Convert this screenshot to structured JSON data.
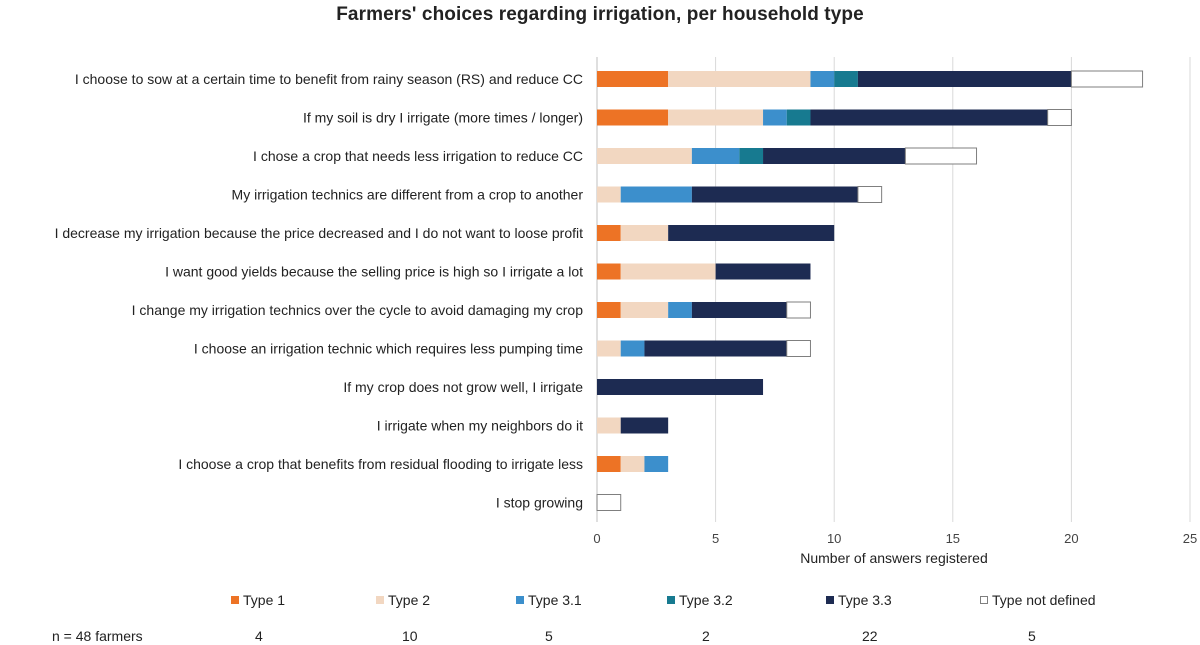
{
  "chart_data": {
    "type": "bar",
    "orientation": "horizontal",
    "stacked": true,
    "title": "Farmers' choices regarding irrigation, per household type",
    "xlabel": "Number of answers registered",
    "ylabel": "",
    "xlim": [
      0,
      25
    ],
    "xticks": [
      0,
      5,
      10,
      15,
      20,
      25
    ],
    "grid": "vertical",
    "legend_position": "bottom",
    "categories": [
      "I choose to sow at a certain time to benefit from rainy season (RS) and reduce CC",
      "If my soil is dry I irrigate (more times / longer)",
      "I chose a crop that needs less irrigation to reduce CC",
      "My irrigation technics are different from a crop to another",
      "I decrease my irrigation because the price decreased and I do not want to loose profit",
      "I want good yields because the selling price is high so I irrigate a lot",
      "I change my irrigation technics over the cycle to avoid damaging my crop",
      "I choose an irrigation technic which requires less pumping time",
      "If my crop does not grow well, I irrigate",
      "I irrigate when my neighbors do it",
      "I choose a crop that benefits from residual flooding to irrigate less",
      "I stop growing"
    ],
    "series": [
      {
        "name": "Type 1",
        "color": "#ED7325",
        "values": [
          3,
          3,
          0,
          0,
          1,
          1,
          1,
          0,
          0,
          0,
          1,
          0
        ]
      },
      {
        "name": "Type 2",
        "color": "#F2D7C1",
        "values": [
          6,
          4,
          4,
          1,
          2,
          4,
          2,
          1,
          0,
          1,
          1,
          0
        ]
      },
      {
        "name": "Type 3.1",
        "color": "#3C8FCC",
        "values": [
          1,
          1,
          2,
          3,
          0,
          0,
          1,
          1,
          0,
          0,
          1,
          0
        ]
      },
      {
        "name": "Type 3.2",
        "color": "#177A90",
        "values": [
          1,
          1,
          1,
          0,
          0,
          0,
          0,
          0,
          0,
          0,
          0,
          0
        ]
      },
      {
        "name": "Type 3.3",
        "color": "#1D2B52",
        "values": [
          9,
          10,
          6,
          7,
          7,
          4,
          4,
          6,
          7,
          2,
          0,
          0
        ]
      },
      {
        "name": "Type not defined",
        "color": "#FFFFFF",
        "values": [
          3,
          1,
          3,
          1,
          0,
          0,
          1,
          1,
          0,
          0,
          0,
          1
        ]
      }
    ],
    "sample_label": "n = 48 farmers",
    "sample_counts": [
      "4",
      "10",
      "5",
      "2",
      "22",
      "5"
    ]
  }
}
